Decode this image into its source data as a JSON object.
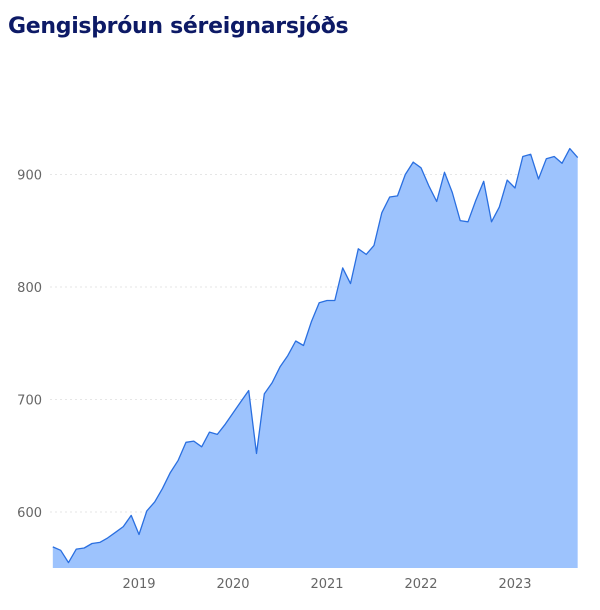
{
  "chart_data": {
    "type": "area",
    "title": "Gengisþróun séreignarsjóðs",
    "xlabel": "",
    "ylabel": "",
    "ylim": [
      550,
      950
    ],
    "yticks": [
      600,
      700,
      800,
      900
    ],
    "xticks": [
      "2019",
      "2020",
      "2021",
      "2022",
      "2023"
    ],
    "grid": true,
    "colors": {
      "fill": "#9dc3fd",
      "line": "#2a6fe0",
      "title": "#0d1a66"
    },
    "start": "2018-02",
    "frequency": "monthly",
    "values": [
      569,
      566,
      555,
      567,
      568,
      572,
      573,
      577,
      582,
      587,
      597,
      580,
      601,
      609,
      621,
      635,
      646,
      662,
      663,
      658,
      671,
      669,
      678,
      688,
      698,
      708,
      652,
      705,
      715,
      729,
      739,
      752,
      748,
      769,
      786,
      788,
      788,
      817,
      803,
      834,
      829,
      837,
      866,
      880,
      881,
      900,
      911,
      906,
      890,
      876,
      902,
      884,
      859,
      858,
      877,
      894,
      858,
      871,
      895,
      888,
      916,
      918,
      896,
      914,
      916,
      910,
      923,
      915
    ]
  }
}
